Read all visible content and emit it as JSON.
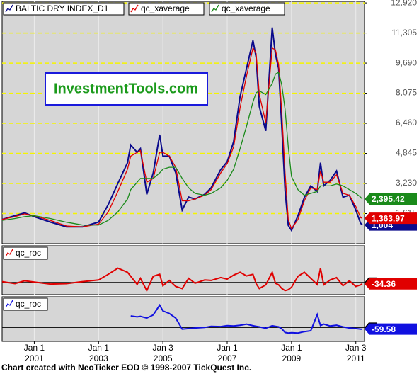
{
  "chart_data": [
    {
      "type": "line",
      "log_scale": false,
      "grid": true,
      "xgrid": true,
      "x": [
        2000.0,
        2000.4,
        2000.7,
        2001.0,
        2001.5,
        2002.0,
        2002.5,
        2003.0,
        2003.3,
        2003.6,
        2003.9,
        2004.0,
        2004.2,
        2004.3,
        2004.5,
        2004.7,
        2004.9,
        2005.0,
        2005.2,
        2005.4,
        2005.6,
        2005.8,
        2006.0,
        2006.3,
        2006.5,
        2006.8,
        2007.0,
        2007.2,
        2007.4,
        2007.6,
        2007.8,
        2007.9,
        2008.0,
        2008.2,
        2008.4,
        2008.5,
        2008.6,
        2008.7,
        2008.8,
        2008.9,
        2009.0,
        2009.2,
        2009.4,
        2009.6,
        2009.8,
        2009.9,
        2010.0,
        2010.2,
        2010.4,
        2010.6,
        2010.8,
        2011.0,
        2011.15,
        2011.2
      ],
      "xlim": [
        2000.0,
        2011.27
      ],
      "xticks": [
        {
          "value": 2001.0,
          "label": "2001"
        },
        {
          "value": 2003.0,
          "label": "2003"
        },
        {
          "value": 2005.0,
          "label": "2005"
        },
        {
          "value": 2007.0,
          "label": "2007"
        },
        {
          "value": 2009.0,
          "label": "2009"
        },
        {
          "value": 2011.0,
          "label": "2011"
        }
      ],
      "xtick_days": [
        "Jan 1",
        "Jan 1",
        "Jan 3",
        "Jan 1",
        "Jan 1",
        "Jan 3"
      ],
      "ylim": [
        0,
        13000
      ],
      "yticks": [
        {
          "value": 1615,
          "label": "1,615"
        },
        {
          "value": 3230,
          "label": "3,230"
        },
        {
          "value": 4845,
          "label": "4,845"
        },
        {
          "value": 6460,
          "label": "6,460"
        },
        {
          "value": 8075,
          "label": "8,075"
        },
        {
          "value": 9690,
          "label": "9,690"
        },
        {
          "value": 11305,
          "label": "11,305"
        },
        {
          "value": 12920,
          "label": "12,920"
        }
      ],
      "watermark": "InvestmentTools.com",
      "series": [
        {
          "name": "BALTIC DRY INDEX_D1",
          "color": "#0a0a8c",
          "last_label": "1,004",
          "values": [
            1300,
            1500,
            1650,
            1450,
            1160,
            900,
            900,
            1160,
            2100,
            3230,
            4350,
            5300,
            4900,
            5100,
            2650,
            3800,
            5850,
            4700,
            4700,
            3800,
            1800,
            2500,
            2400,
            2650,
            3000,
            3980,
            4400,
            5480,
            7900,
            9400,
            10900,
            10000,
            7350,
            6050,
            11600,
            10150,
            9400,
            6230,
            2850,
            980,
            710,
            1500,
            2480,
            3100,
            2800,
            4350,
            3100,
            3400,
            3900,
            2500,
            2600,
            1800,
            1100,
            1004
          ]
        },
        {
          "name": "qc_xaverage",
          "color": "#e00000",
          "last_label": "1,363.97",
          "values": [
            1300,
            1450,
            1600,
            1500,
            1250,
            950,
            900,
            1050,
            1700,
            2800,
            4000,
            4700,
            4900,
            5000,
            3300,
            3500,
            4900,
            4900,
            4700,
            4100,
            2300,
            2300,
            2400,
            2600,
            2900,
            3800,
            4300,
            5200,
            7300,
            9000,
            10500,
            10200,
            8000,
            6500,
            10500,
            10400,
            9600,
            7000,
            3800,
            1300,
            800,
            1300,
            2300,
            3000,
            2900,
            3900,
            3300,
            3300,
            3700,
            2700,
            2600,
            2000,
            1400,
            1363.97
          ]
        },
        {
          "name": "qc_xaverage",
          "color": "#1a8a1a",
          "last_label": "2,395.42",
          "values": [
            1250,
            1350,
            1450,
            1500,
            1350,
            1150,
            1000,
            1000,
            1250,
            1700,
            2400,
            2900,
            3300,
            3500,
            3500,
            3500,
            3800,
            4000,
            4100,
            4100,
            3500,
            3000,
            2700,
            2600,
            2700,
            3000,
            3400,
            4000,
            5100,
            6300,
            7600,
            8100,
            8200,
            8000,
            8600,
            9100,
            9200,
            8500,
            7200,
            5200,
            3600,
            2900,
            2600,
            2700,
            2800,
            3100,
            3100,
            3100,
            3200,
            3100,
            2900,
            2700,
            2500,
            2395.42
          ]
        }
      ]
    },
    {
      "type": "line",
      "xgrid": true,
      "x": [
        2000.0,
        2000.4,
        2000.7,
        2001.0,
        2001.5,
        2002.0,
        2002.5,
        2003.0,
        2003.3,
        2003.6,
        2003.9,
        2004.0,
        2004.2,
        2004.3,
        2004.5,
        2004.7,
        2004.9,
        2005.0,
        2005.2,
        2005.4,
        2005.6,
        2005.8,
        2006.0,
        2006.3,
        2006.5,
        2006.8,
        2007.0,
        2007.2,
        2007.4,
        2007.6,
        2007.8,
        2007.9,
        2008.0,
        2008.2,
        2008.4,
        2008.5,
        2008.6,
        2008.7,
        2008.8,
        2008.9,
        2009.0,
        2009.2,
        2009.4,
        2009.6,
        2009.8,
        2009.9,
        2010.0,
        2010.2,
        2010.4,
        2010.6,
        2010.8,
        2011.0,
        2011.15,
        2011.2
      ],
      "xlim": [
        2000.0,
        2011.27
      ],
      "ylim": [
        -300,
        900
      ],
      "yticks": [
        0
      ],
      "series": [
        {
          "name": "qc_roc",
          "color": "#e00000",
          "last_label": "-34.36",
          "values": [
            20,
            -30,
            40,
            10,
            -40,
            -30,
            20,
            60,
            200,
            350,
            250,
            150,
            -50,
            100,
            -200,
            150,
            200,
            -80,
            50,
            -100,
            -150,
            100,
            -20,
            60,
            50,
            120,
            80,
            180,
            250,
            160,
            200,
            -30,
            -150,
            -60,
            250,
            -20,
            -60,
            -150,
            -200,
            -180,
            -120,
            150,
            250,
            100,
            -50,
            350,
            -60,
            60,
            120,
            -80,
            40,
            -100,
            -60,
            -34.36
          ]
        }
      ]
    },
    {
      "type": "line",
      "xgrid": true,
      "x": [
        2000.0,
        2000.4,
        2000.7,
        2001.0,
        2001.5,
        2002.0,
        2002.5,
        2003.0,
        2003.3,
        2003.6,
        2003.9,
        2004.0,
        2004.2,
        2004.3,
        2004.5,
        2004.7,
        2004.9,
        2005.0,
        2005.2,
        2005.4,
        2005.6,
        2005.8,
        2006.0,
        2006.3,
        2006.5,
        2006.8,
        2007.0,
        2007.2,
        2007.4,
        2007.6,
        2007.8,
        2007.9,
        2008.0,
        2008.2,
        2008.4,
        2008.5,
        2008.6,
        2008.7,
        2008.8,
        2008.9,
        2009.0,
        2009.2,
        2009.4,
        2009.6,
        2009.8,
        2009.9,
        2010.0,
        2010.2,
        2010.4,
        2010.6,
        2010.8,
        2011.0,
        2011.15,
        2011.2
      ],
      "xlim": [
        2000.0,
        2011.27
      ],
      "ylim": [
        -500,
        1100
      ],
      "yticks": [
        0
      ],
      "series": [
        {
          "name": "qc_roc",
          "color": "#1010e0",
          "last_label": "-59.58",
          "values": [
            null,
            null,
            null,
            null,
            null,
            null,
            null,
            null,
            null,
            null,
            null,
            413,
            380,
            400,
            335,
            450,
            800,
            593,
            500,
            335,
            -60,
            -40,
            -20,
            0,
            40,
            30,
            65,
            50,
            80,
            120,
            60,
            40,
            20,
            -30,
            60,
            40,
            20,
            -50,
            -180,
            -200,
            -190,
            -200,
            -150,
            -120,
            460,
            70,
            120,
            50,
            80,
            20,
            -20,
            -40,
            -60,
            -59.58
          ]
        }
      ]
    }
  ],
  "footer": "Chart created with NeoTicker EOD © 1998-2007 TickQuest Inc."
}
